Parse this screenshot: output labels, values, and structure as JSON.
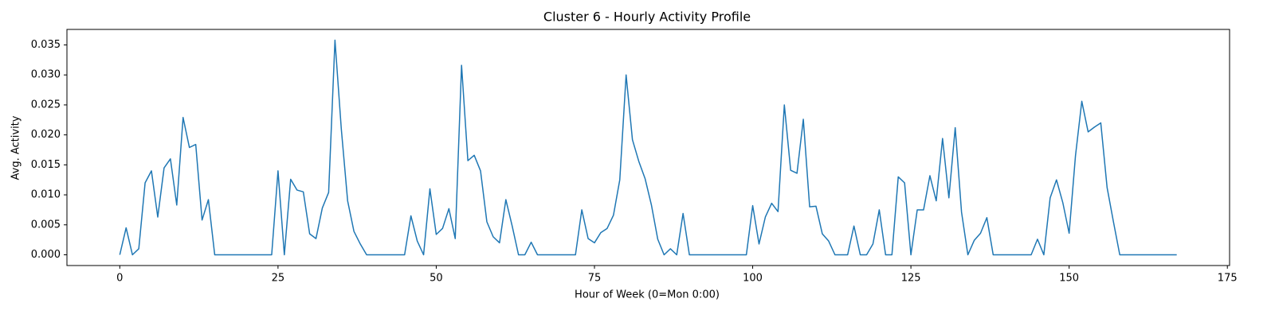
{
  "chart_data": {
    "type": "line",
    "title": "Cluster 6 - Hourly Activity Profile",
    "xlabel": "Hour of Week (0=Mon 0:00)",
    "ylabel": "Avg. Activity",
    "x": [
      0,
      1,
      2,
      3,
      4,
      5,
      6,
      7,
      8,
      9,
      10,
      11,
      12,
      13,
      14,
      15,
      16,
      17,
      18,
      19,
      20,
      21,
      22,
      23,
      24,
      25,
      26,
      27,
      28,
      29,
      30,
      31,
      32,
      33,
      34,
      35,
      36,
      37,
      38,
      39,
      40,
      41,
      42,
      43,
      44,
      45,
      46,
      47,
      48,
      49,
      50,
      51,
      52,
      53,
      54,
      55,
      56,
      57,
      58,
      59,
      60,
      61,
      62,
      63,
      64,
      65,
      66,
      67,
      68,
      69,
      70,
      71,
      72,
      73,
      74,
      75,
      76,
      77,
      78,
      79,
      80,
      81,
      82,
      83,
      84,
      85,
      86,
      87,
      88,
      89,
      90,
      91,
      92,
      93,
      94,
      95,
      96,
      97,
      98,
      99,
      100,
      101,
      102,
      103,
      104,
      105,
      106,
      107,
      108,
      109,
      110,
      111,
      112,
      113,
      114,
      115,
      116,
      117,
      118,
      119,
      120,
      121,
      122,
      123,
      124,
      125,
      126,
      127,
      128,
      129,
      130,
      131,
      132,
      133,
      134,
      135,
      136,
      137,
      138,
      139,
      140,
      141,
      142,
      143,
      144,
      145,
      146,
      147,
      148,
      149,
      150,
      151,
      152,
      153,
      154,
      155,
      156,
      157,
      158,
      159,
      160,
      161,
      162,
      163,
      164,
      165,
      166,
      167
    ],
    "series": [
      {
        "color": "#1f77b4",
        "values": [
          0,
          0.0045,
          0,
          0.001,
          0.012,
          0.014,
          0.0063,
          0.0145,
          0.016,
          0.0083,
          0.0229,
          0.0179,
          0.0184,
          0.0058,
          0.0092,
          0,
          0,
          0,
          0,
          0,
          0,
          0,
          0,
          0,
          0,
          0.014,
          0,
          0.0126,
          0.0108,
          0.0105,
          0.0035,
          0.0027,
          0.0078,
          0.0104,
          0.0358,
          0.021,
          0.009,
          0.0039,
          0.0018,
          0,
          0,
          0,
          0,
          0,
          0,
          0,
          0.0065,
          0.0023,
          0,
          0.011,
          0.0034,
          0.0044,
          0.0077,
          0.0027,
          0.0316,
          0.0157,
          0.0166,
          0.014,
          0.0055,
          0.003,
          0.002,
          0.0092,
          0.0048,
          0,
          0,
          0.0021,
          0,
          0,
          0,
          0,
          0,
          0,
          0,
          0.0075,
          0.0027,
          0.002,
          0.0037,
          0.0044,
          0.0066,
          0.0125,
          0.03,
          0.0192,
          0.0156,
          0.0127,
          0.0083,
          0.0026,
          0,
          0.001,
          0,
          0.0069,
          0,
          0,
          0,
          0,
          0,
          0,
          0,
          0,
          0,
          0,
          0.0082,
          0.0018,
          0.0063,
          0.0086,
          0.0072,
          0.025,
          0.0141,
          0.0136,
          0.0226,
          0.008,
          0.0081,
          0.0035,
          0.0023,
          0,
          0,
          0,
          0.0048,
          0,
          0,
          0.0018,
          0.0075,
          0,
          0,
          0.013,
          0.012,
          0,
          0.0075,
          0.0075,
          0.0132,
          0.009,
          0.0194,
          0.0095,
          0.0212,
          0.0071,
          0,
          0.0024,
          0.0036,
          0.0062,
          0,
          0,
          0,
          0,
          0,
          0,
          0,
          0.0026,
          0,
          0.0095,
          0.0125,
          0.0087,
          0.0036,
          0.0165,
          0.0256,
          0.0205,
          0.0213,
          0.022,
          0.0112,
          0.0055,
          0,
          0,
          0,
          0,
          0,
          0,
          0,
          0,
          0,
          0
        ]
      }
    ],
    "xlim": [
      -8.35,
      175.35
    ],
    "ylim": [
      -0.00179,
      0.03759
    ],
    "xticks": [
      0,
      25,
      50,
      75,
      100,
      125,
      150,
      175
    ],
    "yticks": [
      {
        "value": 0,
        "label": "0.000"
      },
      {
        "value": 0.005,
        "label": "0.005"
      },
      {
        "value": 0.01,
        "label": "0.010"
      },
      {
        "value": 0.015,
        "label": "0.015"
      },
      {
        "value": 0.02,
        "label": "0.020"
      },
      {
        "value": 0.025,
        "label": "0.025"
      },
      {
        "value": 0.03,
        "label": "0.030"
      },
      {
        "value": 0.035,
        "label": "0.035"
      }
    ],
    "grid": false
  }
}
